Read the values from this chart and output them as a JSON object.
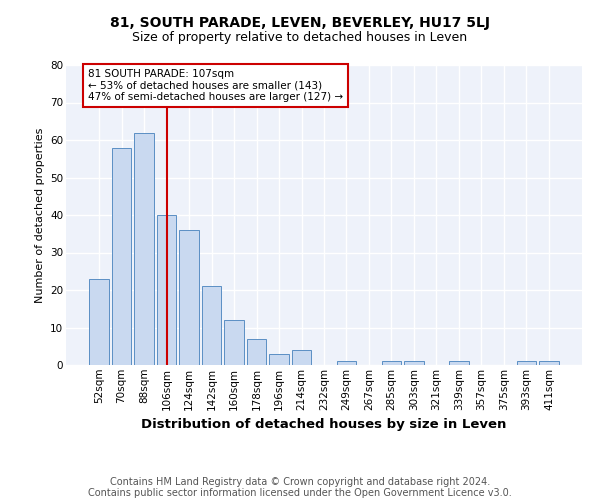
{
  "title_main": "81, SOUTH PARADE, LEVEN, BEVERLEY, HU17 5LJ",
  "title_sub": "Size of property relative to detached houses in Leven",
  "xlabel": "Distribution of detached houses by size in Leven",
  "ylabel": "Number of detached properties",
  "categories": [
    "52sqm",
    "70sqm",
    "88sqm",
    "106sqm",
    "124sqm",
    "142sqm",
    "160sqm",
    "178sqm",
    "196sqm",
    "214sqm",
    "232sqm",
    "249sqm",
    "267sqm",
    "285sqm",
    "303sqm",
    "321sqm",
    "339sqm",
    "357sqm",
    "375sqm",
    "393sqm",
    "411sqm"
  ],
  "values": [
    23,
    58,
    62,
    40,
    36,
    21,
    12,
    7,
    3,
    4,
    0,
    1,
    0,
    1,
    1,
    0,
    1,
    0,
    0,
    1,
    1
  ],
  "bar_color": "#c9d9f0",
  "bar_edge_color": "#5a8fc4",
  "red_line_index": 3,
  "red_line_color": "#cc0000",
  "annotation_line1": "81 SOUTH PARADE: 107sqm",
  "annotation_line2": "← 53% of detached houses are smaller (143)",
  "annotation_line3": "47% of semi-detached houses are larger (127) →",
  "annotation_box_color": "#cc0000",
  "ylim": [
    0,
    80
  ],
  "yticks": [
    0,
    10,
    20,
    30,
    40,
    50,
    60,
    70,
    80
  ],
  "footer_text": "Contains HM Land Registry data © Crown copyright and database right 2024.\nContains public sector information licensed under the Open Government Licence v3.0.",
  "background_color": "#eef2fa",
  "grid_color": "#ffffff",
  "title_main_fontsize": 10,
  "title_sub_fontsize": 9,
  "xlabel_fontsize": 9.5,
  "ylabel_fontsize": 8,
  "tick_fontsize": 7.5,
  "ann_fontsize": 7.5,
  "footer_fontsize": 7
}
